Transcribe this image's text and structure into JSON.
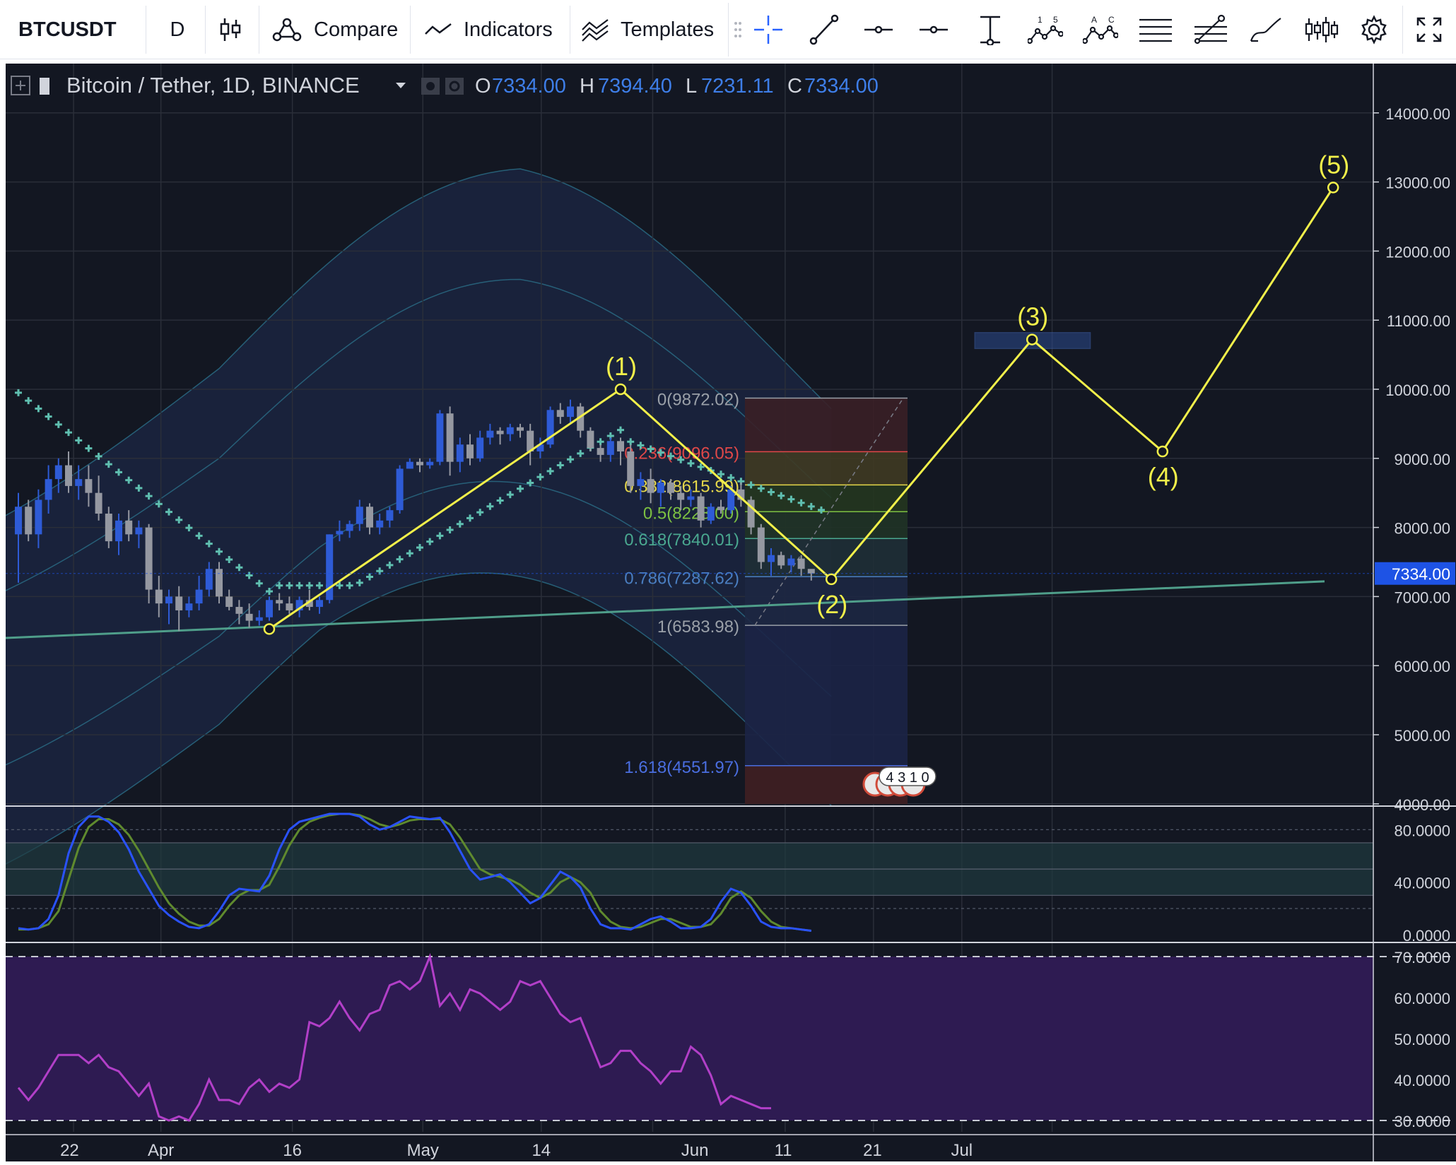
{
  "toolbar": {
    "symbol": "BTCUSDT",
    "interval": "D",
    "compare_label": "Compare",
    "indicators_label": "Indicators",
    "templates_label": "Templates",
    "drawing_tools": [
      "crosshair-icon",
      "trend-line-icon",
      "horizontal-line-icon",
      "horizontal-ray-icon",
      "vertical-range-icon",
      "pattern-15-icon",
      "pattern-ac-icon",
      "fib-levels-icon",
      "fib-tool-icon",
      "brush-icon",
      "bar-pattern-icon"
    ],
    "wave_tool_labels": [
      "1",
      "5"
    ],
    "abcd_tool_labels": [
      "A",
      "C"
    ]
  },
  "legend": {
    "title": "Bitcoin / Tether, 1D, BINANCE",
    "o_label": "O",
    "o_value": "7334.00",
    "h_label": "H",
    "h_value": "7394.40",
    "l_label": "L",
    "l_value": "7231.11",
    "c_label": "C",
    "c_value": "7334.00"
  },
  "colors": {
    "background": "#131722",
    "candle_up": "#2e5bd6",
    "candle_down": "#9598a1",
    "bands": "#2a6f88",
    "psar": "#5fbfb0",
    "wave": "#f2f04a",
    "trendline": "#4f9e8a",
    "fib_red": "#e04848",
    "fib_yellow": "#e6d84a",
    "fib_green": "#7dc142",
    "fib_teal": "#4aa890",
    "fib_blue": "#4a7ec0",
    "fib_grey": "#9aa0a8",
    "stoch_k": "#2a52ff",
    "stoch_d": "#5f8a2e",
    "rsi": "#b23fc8",
    "price_tag": "#1e53e5"
  },
  "chart_data": [
    {
      "type": "candlestick",
      "title": "Bitcoin / Tether, 1D, BINANCE",
      "x_ticks": [
        "22",
        "Apr",
        "16",
        "May",
        "14",
        "Jun",
        "11",
        "21",
        "Jul"
      ],
      "y_ticks": [
        "14000.00",
        "13000.00",
        "12000.00",
        "11000.00",
        "10000.00",
        "9000.00",
        "8000.00",
        "7000.00",
        "6000.00",
        "5000.00",
        "4000.00"
      ],
      "ylim": [
        4000,
        14600
      ],
      "x_range_days": [
        0,
        132
      ],
      "current_price_label": "7334.00",
      "candles": [
        [
          0,
          7900,
          8500,
          7200,
          8300
        ],
        [
          1,
          8300,
          8400,
          7800,
          7900
        ],
        [
          2,
          7900,
          8550,
          7700,
          8400
        ],
        [
          3,
          8400,
          8900,
          8200,
          8700
        ],
        [
          4,
          8700,
          9000,
          8500,
          8900
        ],
        [
          5,
          8900,
          9100,
          8500,
          8600
        ],
        [
          6,
          8600,
          8900,
          8400,
          8700
        ],
        [
          7,
          8700,
          8900,
          8300,
          8500
        ],
        [
          8,
          8500,
          8750,
          8100,
          8200
        ],
        [
          9,
          8200,
          8300,
          7700,
          7800
        ],
        [
          10,
          7800,
          8200,
          7600,
          8100
        ],
        [
          11,
          8100,
          8250,
          7800,
          7900
        ],
        [
          12,
          7900,
          8100,
          7700,
          8000
        ],
        [
          13,
          8000,
          8050,
          6900,
          7100
        ],
        [
          14,
          7100,
          7300,
          6700,
          6900
        ],
        [
          15,
          6900,
          7100,
          6600,
          7000
        ],
        [
          16,
          7000,
          7150,
          6500,
          6800
        ],
        [
          17,
          6800,
          7000,
          6700,
          6900
        ],
        [
          18,
          6900,
          7300,
          6800,
          7100
        ],
        [
          19,
          7100,
          7500,
          7000,
          7400
        ],
        [
          20,
          7400,
          7500,
          6900,
          7000
        ],
        [
          21,
          7000,
          7100,
          6800,
          6850
        ],
        [
          22,
          6850,
          6950,
          6600,
          6750
        ],
        [
          23,
          6750,
          6900,
          6550,
          6650
        ],
        [
          24,
          6650,
          6800,
          6580,
          6700
        ],
        [
          25,
          6700,
          7000,
          6650,
          6950
        ],
        [
          26,
          6950,
          7050,
          6800,
          6900
        ],
        [
          27,
          6900,
          7000,
          6750,
          6800
        ],
        [
          28,
          6800,
          7000,
          6700,
          6950
        ],
        [
          29,
          6950,
          7100,
          6800,
          6850
        ],
        [
          30,
          6850,
          7000,
          6750,
          6950
        ],
        [
          31,
          6950,
          7900,
          6900,
          7900
        ],
        [
          32,
          7900,
          8100,
          7800,
          7950
        ],
        [
          33,
          7950,
          8100,
          7850,
          8050
        ],
        [
          34,
          8050,
          8400,
          7950,
          8300
        ],
        [
          35,
          8300,
          8350,
          7900,
          8000
        ],
        [
          36,
          8000,
          8200,
          7900,
          8100
        ],
        [
          37,
          8100,
          8300,
          8000,
          8250
        ],
        [
          38,
          8250,
          8900,
          8200,
          8850
        ],
        [
          39,
          8850,
          9000,
          8850,
          8950
        ],
        [
          40,
          8950,
          9000,
          8800,
          8900
        ],
        [
          41,
          8900,
          9000,
          8850,
          8950
        ],
        [
          42,
          8950,
          9700,
          8900,
          9650
        ],
        [
          43,
          9650,
          9750,
          8750,
          8950
        ],
        [
          44,
          8950,
          9300,
          8800,
          9200
        ],
        [
          45,
          9200,
          9350,
          8900,
          9000
        ],
        [
          46,
          9000,
          9400,
          8950,
          9300
        ],
        [
          47,
          9300,
          9500,
          9200,
          9400
        ],
        [
          48,
          9400,
          9450,
          9200,
          9350
        ],
        [
          49,
          9350,
          9500,
          9250,
          9450
        ],
        [
          50,
          9450,
          9500,
          9300,
          9400
        ],
        [
          51,
          9400,
          9500,
          8900,
          9100
        ],
        [
          52,
          9100,
          9300,
          9000,
          9200
        ],
        [
          53,
          9200,
          9750,
          9150,
          9700
        ],
        [
          54,
          9700,
          9800,
          9500,
          9600
        ],
        [
          55,
          9600,
          9850,
          9500,
          9750
        ],
        [
          56,
          9750,
          9800,
          9300,
          9400
        ],
        [
          57,
          9400,
          9450,
          9100,
          9150
        ],
        [
          58,
          9150,
          9200,
          8950,
          9050
        ],
        [
          59,
          9050,
          9300,
          8950,
          9250
        ],
        [
          60,
          9250,
          9300,
          8900,
          9100
        ],
        [
          61,
          9100,
          9200,
          8500,
          8600
        ],
        [
          62,
          8600,
          8800,
          8400,
          8700
        ],
        [
          63,
          8700,
          8850,
          8350,
          8500
        ],
        [
          64,
          8500,
          8700,
          8300,
          8650
        ],
        [
          65,
          8650,
          8700,
          8400,
          8500
        ],
        [
          66,
          8500,
          8600,
          8250,
          8400
        ],
        [
          67,
          8400,
          8550,
          8300,
          8450
        ],
        [
          68,
          8450,
          8500,
          8000,
          8100
        ],
        [
          69,
          8100,
          8350,
          8050,
          8300
        ],
        [
          70,
          8300,
          8400,
          8200,
          8250
        ],
        [
          71,
          8250,
          8600,
          8200,
          8550
        ],
        [
          72,
          8550,
          8650,
          8300,
          8400
        ],
        [
          73,
          8400,
          8450,
          7900,
          8000
        ],
        [
          74,
          8000,
          8050,
          7400,
          7500
        ],
        [
          75,
          7500,
          7700,
          7300,
          7600
        ],
        [
          76,
          7600,
          7650,
          7400,
          7450
        ],
        [
          77,
          7450,
          7600,
          7350,
          7550
        ],
        [
          78,
          7550,
          7600,
          7300,
          7400
        ],
        [
          79,
          7400,
          7394,
          7231,
          7334
        ]
      ]
    },
    {
      "type": "line",
      "title": "Stochastic RSI",
      "y_ticks": [
        "80.0000",
        "40.0000",
        "0.0000"
      ],
      "ylim": [
        -2,
        95
      ],
      "series": [
        {
          "values": [
            5,
            4,
            5,
            12,
            30,
            62,
            82,
            90,
            90,
            86,
            78,
            65,
            48,
            35,
            22,
            15,
            10,
            6,
            5,
            8,
            18,
            30,
            35,
            34,
            33,
            45,
            65,
            80,
            86,
            88,
            90,
            92,
            92,
            92,
            90,
            84,
            80,
            82,
            86,
            90,
            89,
            88,
            89,
            78,
            64,
            50,
            42,
            44,
            46,
            40,
            32,
            24,
            28,
            38,
            48,
            44,
            36,
            20,
            8,
            5,
            5,
            4,
            8,
            12,
            14,
            10,
            5,
            5,
            6,
            12,
            25,
            35,
            32,
            22,
            10,
            6,
            5,
            5,
            4,
            3
          ]
        },
        {
          "values": [
            4,
            4,
            5,
            8,
            18,
            42,
            66,
            82,
            88,
            88,
            84,
            76,
            64,
            50,
            36,
            24,
            16,
            10,
            7,
            7,
            12,
            22,
            30,
            34,
            34,
            38,
            52,
            68,
            80,
            86,
            89,
            91,
            92,
            92,
            91,
            88,
            84,
            82,
            84,
            87,
            88,
            88,
            88,
            84,
            74,
            62,
            50,
            46,
            44,
            42,
            38,
            32,
            28,
            32,
            40,
            44,
            40,
            32,
            18,
            10,
            6,
            5,
            6,
            9,
            12,
            12,
            9,
            6,
            6,
            8,
            16,
            28,
            33,
            28,
            18,
            10,
            6,
            5,
            4,
            3
          ]
        }
      ]
    },
    {
      "type": "line",
      "title": "RSI",
      "y_ticks": [
        "70.0000",
        "60.0000",
        "50.0000",
        "40.0000",
        "30.0000"
      ],
      "ylim": [
        29,
        72
      ],
      "series": [
        {
          "values": [
            38,
            35,
            38,
            42,
            46,
            46,
            46,
            44,
            46,
            43,
            42,
            39,
            36,
            39,
            31,
            30,
            31,
            30,
            34,
            40,
            35,
            35,
            34,
            38,
            40,
            37,
            39,
            38,
            40,
            54,
            53,
            55,
            59,
            55,
            52,
            56,
            57,
            63,
            64,
            62,
            64,
            70,
            58,
            61,
            57,
            62,
            61,
            59,
            57,
            59,
            64,
            63,
            64,
            60,
            56,
            54,
            55,
            49,
            43,
            44,
            47,
            47,
            44,
            42,
            39,
            42,
            42,
            48,
            46,
            41,
            34,
            36,
            35,
            34,
            33,
            33
          ]
        }
      ]
    }
  ],
  "fib": {
    "levels": [
      {
        "label": "0(9872.02)",
        "value": 9872.02,
        "color": "#9aa0a8"
      },
      {
        "label": "0.236(9096.05)",
        "value": 9096.05,
        "color": "#e04848"
      },
      {
        "label": "0.382(8615.99)",
        "value": 8615.99,
        "color": "#e6d84a"
      },
      {
        "label": "0.5(8228.00)",
        "value": 8228.0,
        "color": "#7dc142"
      },
      {
        "label": "0.618(7840.01)",
        "value": 7840.01,
        "color": "#4aa890"
      },
      {
        "label": "0.786(7287.62)",
        "value": 7287.62,
        "color": "#4a7ec0"
      },
      {
        "label": "1(6583.98)",
        "value": 6583.98,
        "color": "#9aa0a8"
      },
      {
        "label": "1.618(4551.97)",
        "value": 4551.97,
        "color": "#4a6ee0"
      }
    ]
  },
  "waves": {
    "points": [
      {
        "label": "",
        "day": 25,
        "price": 6530
      },
      {
        "label": "(1)",
        "day": 60,
        "price": 10000
      },
      {
        "label": "(2)",
        "day": 81,
        "price": 7250
      },
      {
        "label": "(3)",
        "day": 101,
        "price": 10720
      },
      {
        "label": "(4)",
        "day": 114,
        "price": 9100
      },
      {
        "label": "(5)",
        "day": 131,
        "price": 12920
      }
    ]
  },
  "events_badge": "4310"
}
